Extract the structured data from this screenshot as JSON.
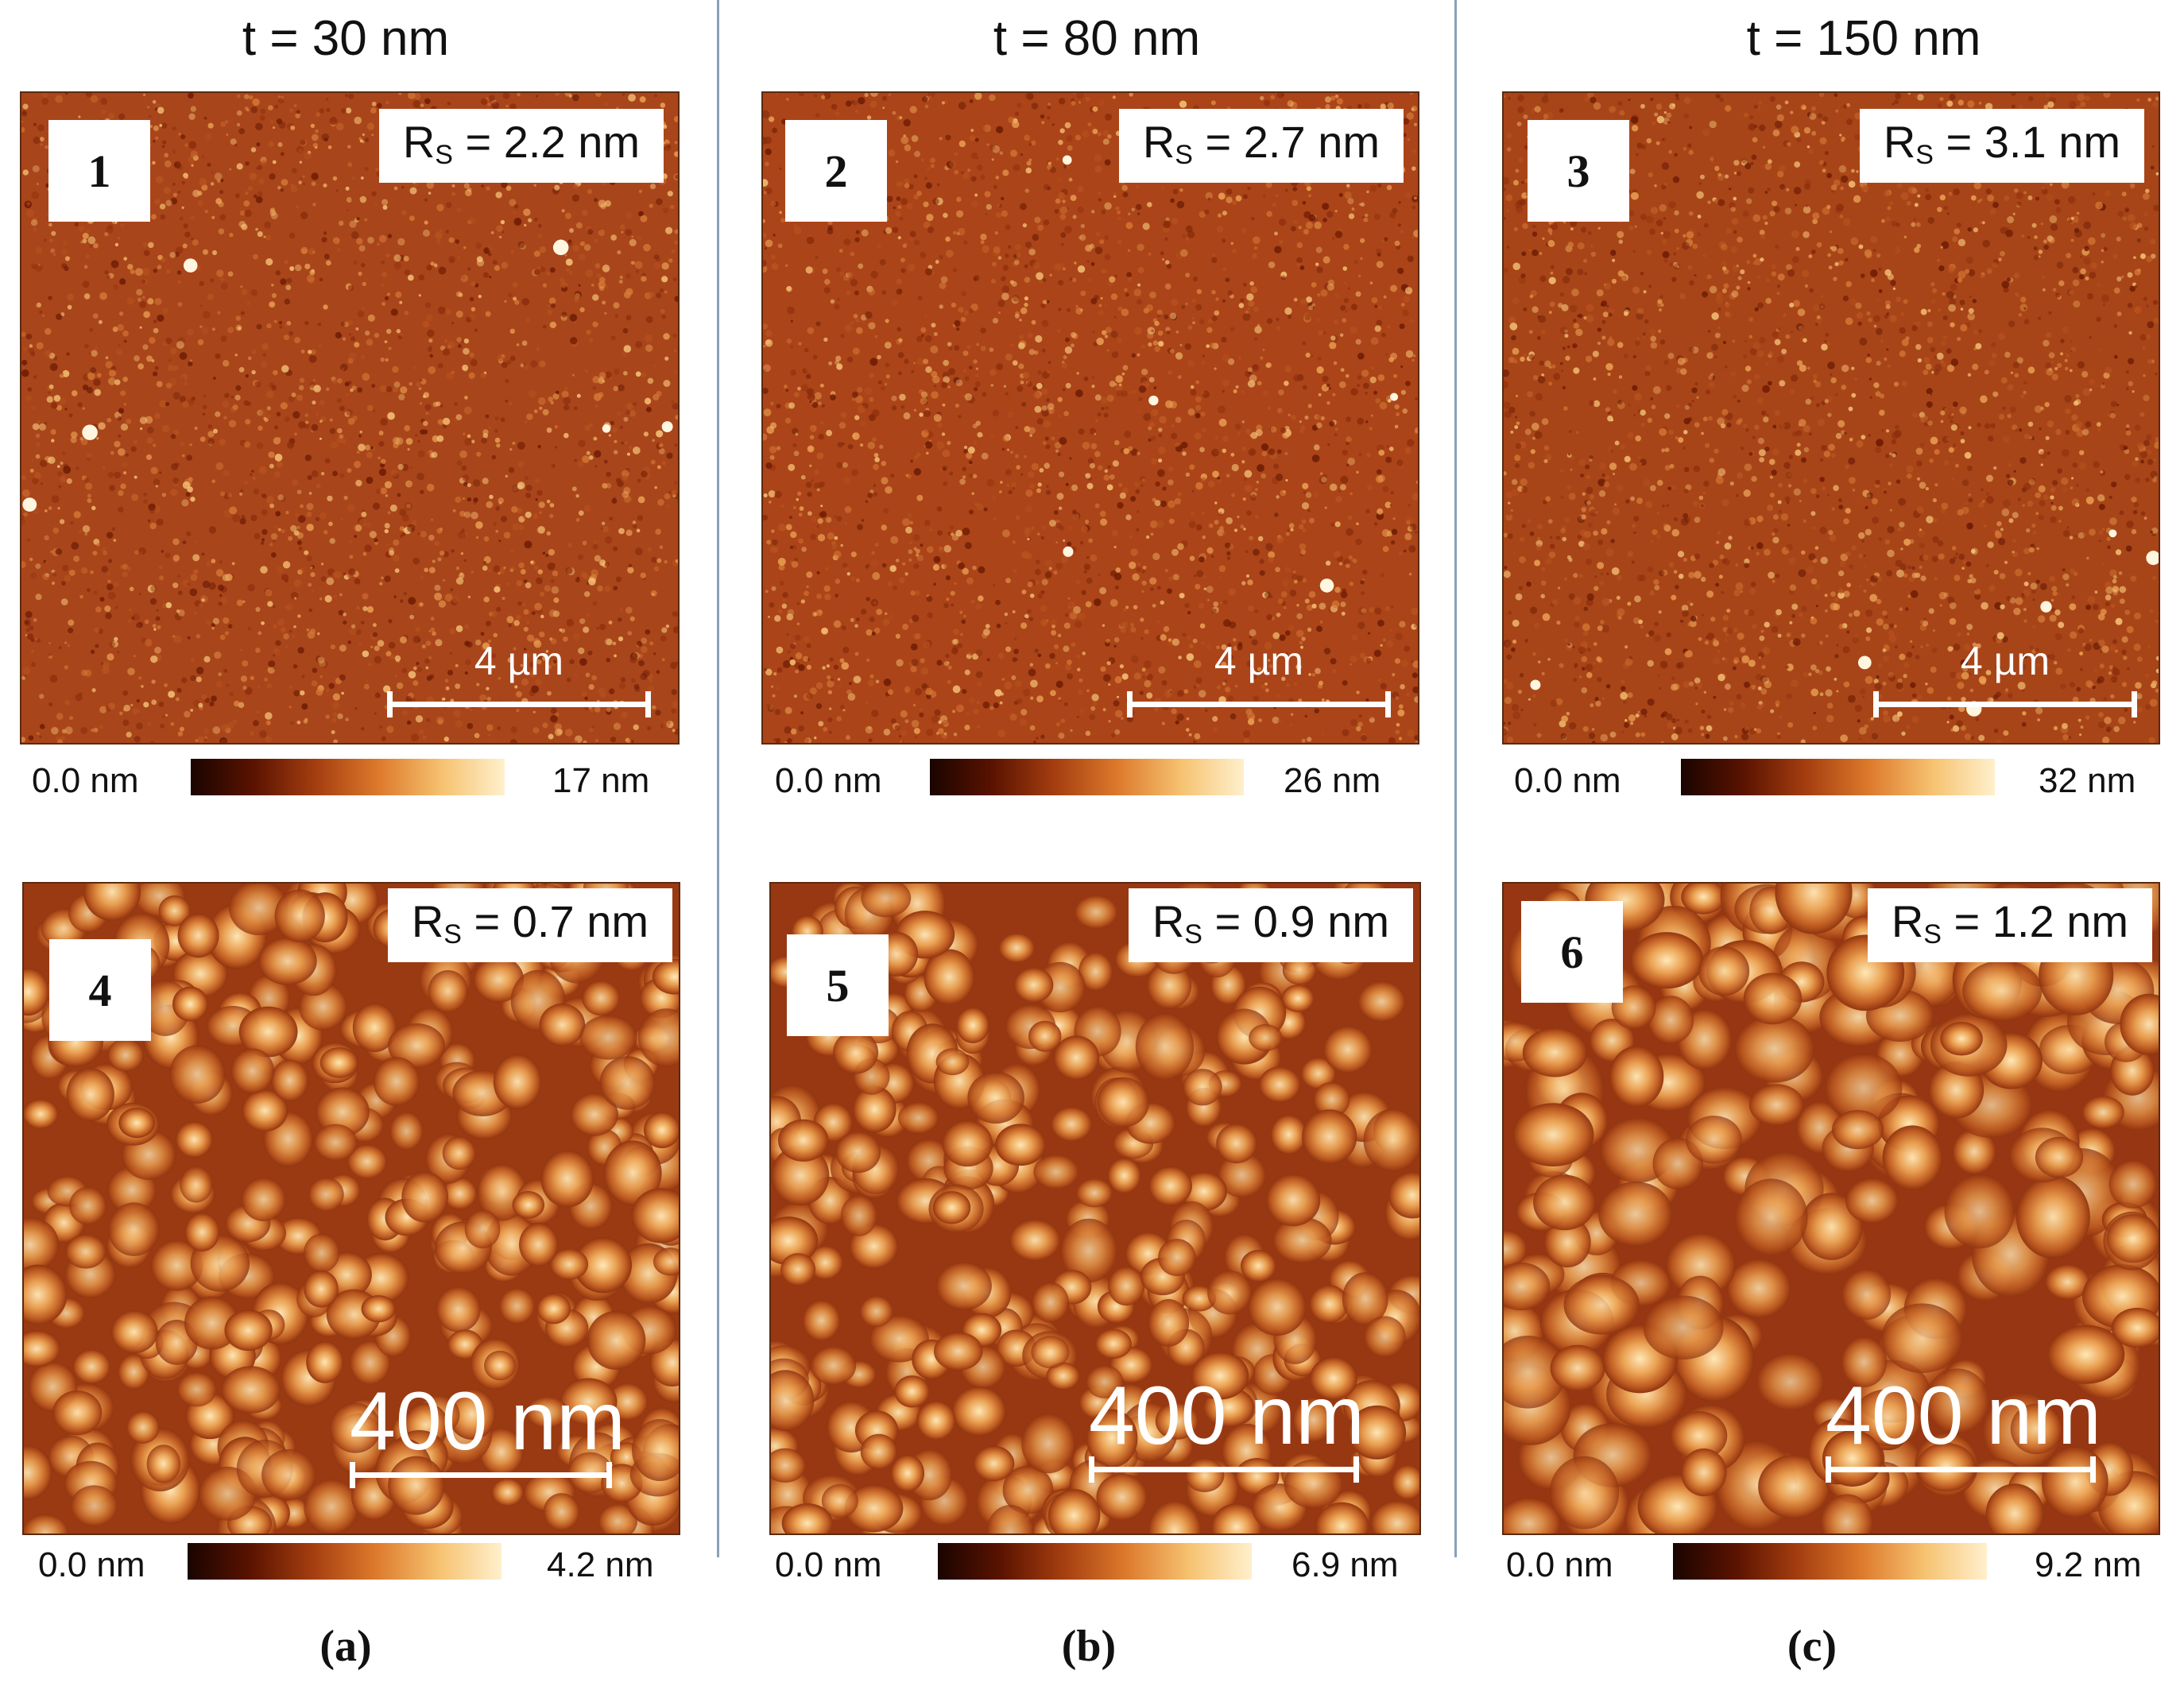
{
  "columns": [
    {
      "title": "t = 30 nm",
      "label": "(a)"
    },
    {
      "title": "t = 80 nm",
      "label": "(b)"
    },
    {
      "title": "t = 150 nm",
      "label": "(c)"
    }
  ],
  "panels": [
    {
      "number": "1",
      "rs_prefix": "R",
      "rs_sub": "S",
      "rs_value": " = 2.2 nm",
      "scale_bar": "4 µm",
      "cbar_min": "0.0 nm",
      "cbar_max": "17 nm"
    },
    {
      "number": "2",
      "rs_prefix": "R",
      "rs_sub": "S",
      "rs_value": " = 2.7 nm",
      "scale_bar": "4 µm",
      "cbar_min": "0.0 nm",
      "cbar_max": "26 nm"
    },
    {
      "number": "3",
      "rs_prefix": "R",
      "rs_sub": "S",
      "rs_value": " = 3.1 nm",
      "scale_bar": "4 µm",
      "cbar_min": "0.0 nm",
      "cbar_max": "32 nm"
    },
    {
      "number": "4",
      "rs_prefix": "R",
      "rs_sub": "S",
      "rs_value": " = 0.7 nm",
      "scale_bar": "400 nm",
      "cbar_min": "0.0 nm",
      "cbar_max": "4.2 nm"
    },
    {
      "number": "5",
      "rs_prefix": "R",
      "rs_sub": "S",
      "rs_value": " = 0.9 nm",
      "scale_bar": "400 nm",
      "cbar_min": "0.0 nm",
      "cbar_max": "6.9 nm"
    },
    {
      "number": "6",
      "rs_prefix": "R",
      "rs_sub": "S",
      "rs_value": " = 1.2 nm",
      "scale_bar": "400 nm",
      "cbar_min": "0.0 nm",
      "cbar_max": "9.2 nm"
    }
  ],
  "colors": {
    "afm_dark": "#5a1300",
    "afm_mid": "#b04a18",
    "afm_bright": "#f6c270",
    "divider": "#8aa0b8"
  }
}
